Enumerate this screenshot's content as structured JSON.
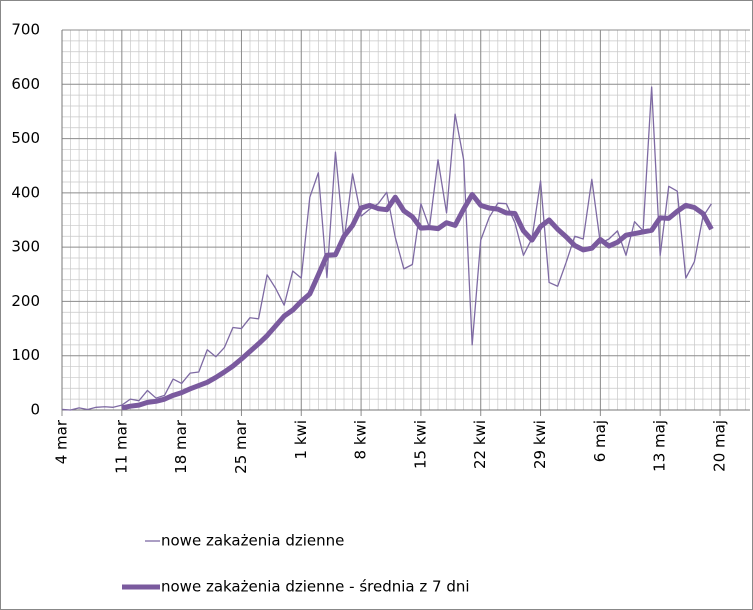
{
  "chart_data": {
    "type": "line",
    "categories": [
      "4 mar",
      null,
      null,
      null,
      null,
      null,
      null,
      "11 mar",
      null,
      null,
      null,
      null,
      null,
      null,
      "18 mar",
      null,
      null,
      null,
      null,
      null,
      null,
      "25 mar",
      null,
      null,
      null,
      null,
      null,
      null,
      "1 kwi",
      null,
      null,
      null,
      null,
      null,
      null,
      "8 kwi",
      null,
      null,
      null,
      null,
      null,
      null,
      "15 kwi",
      null,
      null,
      null,
      null,
      null,
      null,
      "22 kwi",
      null,
      null,
      null,
      null,
      null,
      null,
      "29 kwi",
      null,
      null,
      null,
      null,
      null,
      null,
      "6 maj",
      null,
      null,
      null,
      null,
      null,
      null,
      "13 maj",
      null,
      null,
      null,
      null,
      null,
      null,
      "20 maj"
    ],
    "series": [
      {
        "name": "nowe zakażenia dzienne",
        "color": "#7e6aa3",
        "width": 1.3,
        "values": [
          1,
          0,
          4,
          1,
          5,
          6,
          5,
          9,
          20,
          17,
          36,
          22,
          27,
          57,
          49,
          68,
          70,
          111,
          98,
          115,
          152,
          150,
          170,
          168,
          249,
          224,
          193,
          256,
          243,
          392,
          437,
          244,
          475,
          311,
          435,
          357,
          370,
          380,
          401,
          318,
          260,
          268,
          380,
          336,
          461,
          363,
          545,
          461,
          120,
          313,
          355,
          381,
          380,
          345,
          285,
          316,
          422,
          235,
          228,
          272,
          320,
          315,
          425,
          307,
          315,
          330,
          285,
          347,
          330,
          595,
          285,
          412,
          403,
          243,
          273,
          356,
          380,
          null
        ]
      },
      {
        "name": "nowe zakażenia dzienne - średnia z 7 dni",
        "color": "#7a5a9e",
        "width": 5,
        "values": [
          null,
          null,
          null,
          null,
          null,
          null,
          null,
          4,
          7,
          9,
          14,
          16,
          20,
          27,
          32,
          39,
          45,
          51,
          60,
          70,
          81,
          94,
          108,
          122,
          137,
          155,
          173,
          184,
          200,
          214,
          249,
          285,
          286,
          320,
          340,
          372,
          377,
          371,
          369,
          392,
          367,
          356,
          335,
          336,
          334,
          345,
          340,
          370,
          397,
          377,
          372,
          370,
          363,
          362,
          330,
          313,
          338,
          350,
          333,
          319,
          303,
          295,
          298,
          314,
          302,
          309,
          322,
          325,
          328,
          331,
          354,
          353,
          366,
          377,
          373,
          362,
          333,
          null
        ]
      }
    ],
    "ylim": [
      0,
      700
    ],
    "yticks": [
      0,
      100,
      200,
      300,
      400,
      500,
      600,
      700
    ],
    "grid": true
  }
}
